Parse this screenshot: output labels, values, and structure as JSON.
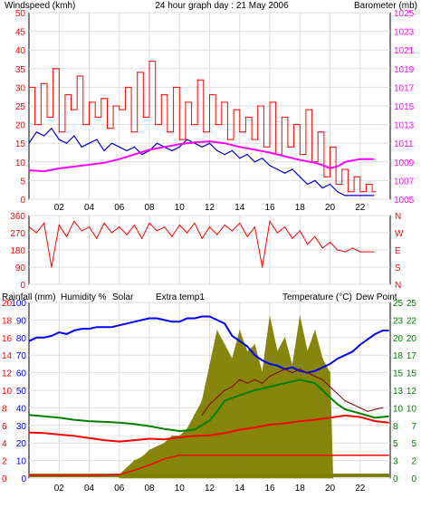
{
  "title": "24 hour graph day : 21 May 2006",
  "colors": {
    "wind": "#ff0000",
    "gust": "#cc0000",
    "avg_wind": "#0000cc",
    "baro": "#ff00ff",
    "dir": "#ff0000",
    "rain": "#ff0000",
    "humidity": "#0000ff",
    "solar": "#808000",
    "extra_temp": "#800000",
    "temperature": "#008000",
    "dew_point": "#ff0000",
    "frame": "#000000",
    "grid": "#ffffff"
  },
  "chart_data": [
    {
      "type": "line",
      "panel": "wind",
      "ylabel_left": "Windspeed (kmh)",
      "ylabel_right": "Barometer (mb)",
      "x_ticks": [
        "02",
        "04",
        "06",
        "08",
        "10",
        "12",
        "14",
        "16",
        "18",
        "20",
        "22"
      ],
      "y_ticks_left": [
        "0",
        "5",
        "10",
        "15",
        "20",
        "25",
        "30",
        "35",
        "40",
        "45",
        "50"
      ],
      "y_ticks_right": [
        "1005",
        "1007",
        "1009",
        "1011",
        "1013",
        "1015",
        "1017",
        "1019",
        "1021",
        "1023",
        "1025"
      ],
      "ylim_left": [
        0,
        50
      ],
      "ylim_right": [
        1005,
        1025
      ],
      "xlim": [
        0,
        24
      ],
      "series": [
        {
          "name": "Windspeed (kmh)",
          "axis": "left",
          "x": [
            0.0,
            0.4,
            0.8,
            1.2,
            1.6,
            2.0,
            2.4,
            2.8,
            3.2,
            3.6,
            4.0,
            4.4,
            4.8,
            5.2,
            5.6,
            6.0,
            6.4,
            6.8,
            7.2,
            7.6,
            8.0,
            8.4,
            8.8,
            9.2,
            9.6,
            10.0,
            10.4,
            10.8,
            11.2,
            11.6,
            12.0,
            12.4,
            12.8,
            13.2,
            13.6,
            14.0,
            14.4,
            14.8,
            15.2,
            15.6,
            16.0,
            16.4,
            16.8,
            17.2,
            17.6,
            18.0,
            18.4,
            18.8,
            19.2,
            19.6,
            20.0,
            20.4,
            20.8,
            21.2,
            21.6,
            22.0,
            22.4,
            22.8
          ],
          "values": [
            30,
            20,
            31,
            22,
            35,
            18,
            28,
            24,
            33,
            20,
            26,
            22,
            27,
            19,
            25,
            24,
            30,
            18,
            34,
            22,
            37,
            20,
            28,
            18,
            30,
            16,
            26,
            20,
            32,
            18,
            28,
            20,
            26,
            16,
            24,
            18,
            22,
            16,
            25,
            14,
            26,
            12,
            22,
            14,
            20,
            12,
            24,
            10,
            18,
            6,
            14,
            4,
            8,
            2,
            6,
            2,
            4,
            2
          ]
        },
        {
          "name": "Average wind",
          "axis": "left",
          "x": [
            0.0,
            0.5,
            1.0,
            1.5,
            2.0,
            2.5,
            3.0,
            3.5,
            4.0,
            4.5,
            5.0,
            5.5,
            6.0,
            6.5,
            7.0,
            7.5,
            8.0,
            8.5,
            9.0,
            9.5,
            10.0,
            10.5,
            11.0,
            11.5,
            12.0,
            12.5,
            13.0,
            13.5,
            14.0,
            14.5,
            15.0,
            15.5,
            16.0,
            16.5,
            17.0,
            17.5,
            18.0,
            18.5,
            19.0,
            19.5,
            20.0,
            20.5,
            21.0,
            21.5,
            22.0,
            22.5,
            22.9
          ],
          "values": [
            15,
            18,
            17,
            19,
            16,
            15,
            17,
            14,
            15,
            16,
            13,
            15,
            14,
            13,
            14,
            12,
            13,
            15,
            14,
            13,
            14,
            16,
            15,
            14,
            15,
            13,
            12,
            13,
            11,
            12,
            10,
            11,
            9,
            8,
            7,
            8,
            6,
            4,
            5,
            3,
            4,
            2,
            1,
            1,
            1,
            1,
            1
          ]
        },
        {
          "name": "Barometer (mb)",
          "axis": "right",
          "x": [
            0.0,
            1.0,
            2.0,
            3.0,
            4.0,
            5.0,
            6.0,
            7.0,
            8.0,
            9.0,
            10.0,
            11.0,
            12.0,
            13.0,
            14.0,
            15.0,
            16.0,
            17.0,
            18.0,
            19.0,
            19.6,
            20.0,
            20.6,
            21.0,
            22.0,
            22.9
          ],
          "values": [
            1008.1,
            1008.0,
            1008.3,
            1008.5,
            1008.7,
            1008.9,
            1009.3,
            1009.8,
            1010.3,
            1010.6,
            1010.9,
            1011.1,
            1011.2,
            1011.0,
            1010.6,
            1010.3,
            1010.0,
            1009.6,
            1009.2,
            1008.9,
            1008.6,
            1008.3,
            1008.6,
            1009.0,
            1009.3,
            1009.3
          ]
        }
      ]
    },
    {
      "type": "line",
      "panel": "wind_direction",
      "y_ticks_left": [
        "0",
        "90",
        "180",
        "270",
        "360"
      ],
      "y_ticks_right": [
        "N",
        "S",
        "E",
        "W",
        "N"
      ],
      "ylim": [
        0,
        360
      ],
      "xlim": [
        0,
        24
      ],
      "series": [
        {
          "name": "Wind direction",
          "x": [
            0.0,
            0.5,
            1.0,
            1.5,
            2.0,
            2.5,
            3.0,
            3.5,
            4.0,
            4.5,
            5.0,
            5.5,
            6.0,
            6.5,
            7.0,
            7.5,
            8.0,
            8.5,
            9.0,
            9.5,
            10.0,
            10.5,
            11.0,
            11.5,
            12.0,
            12.5,
            13.0,
            13.5,
            14.0,
            14.5,
            15.0,
            15.5,
            16.0,
            16.5,
            17.0,
            17.5,
            18.0,
            18.5,
            19.0,
            19.5,
            20.0,
            20.5,
            21.0,
            21.5,
            22.0,
            22.9
          ],
          "values": [
            300,
            270,
            320,
            90,
            310,
            250,
            330,
            280,
            300,
            240,
            320,
            270,
            300,
            260,
            310,
            240,
            320,
            280,
            300,
            250,
            310,
            270,
            320,
            240,
            300,
            260,
            310,
            280,
            320,
            250,
            300,
            90,
            330,
            270,
            300,
            240,
            280,
            210,
            250,
            190,
            220,
            180,
            170,
            190,
            170,
            170
          ]
        }
      ]
    },
    {
      "type": "line",
      "panel": "rain_humidity_solar_temperature",
      "labels": {
        "rainfall": "Rainfall (mm)",
        "humidity": "Humidity %",
        "solar": "Solar",
        "extra_temp": "Extra temp1",
        "temperature": "Temperature (°C)",
        "dew_point": "Dew Point"
      },
      "y_ticks_left_rain": [
        "0",
        "2",
        "4",
        "6",
        "8",
        "10",
        "12",
        "14",
        "16",
        "18",
        "20"
      ],
      "y_ticks_left_humidity": [
        "0",
        "10",
        "20",
        "30",
        "40",
        "50",
        "60",
        "70",
        "80",
        "90",
        "100"
      ],
      "y_ticks_right_temp_a": [
        "0",
        "3",
        "5",
        "8",
        "10",
        "13",
        "15",
        "18",
        "20",
        "23",
        "25"
      ],
      "y_ticks_right_temp_b": [
        "0",
        "2",
        "5",
        "7",
        "10",
        "12",
        "15",
        "17",
        "20",
        "22",
        "25"
      ],
      "ylim_left": [
        0,
        100
      ],
      "ylim_right": [
        0,
        25
      ],
      "xlim": [
        0,
        24
      ],
      "series": [
        {
          "name": "Humidity %",
          "axis": "left",
          "x": [
            0.0,
            0.5,
            1.0,
            1.5,
            2.0,
            2.5,
            3.0,
            3.5,
            4.0,
            4.5,
            5.0,
            5.5,
            6.0,
            6.5,
            7.0,
            7.5,
            8.0,
            8.5,
            9.0,
            9.5,
            10.0,
            10.5,
            11.0,
            11.5,
            12.0,
            12.5,
            13.0,
            13.5,
            14.0,
            14.5,
            15.0,
            15.5,
            16.0,
            16.5,
            17.0,
            17.5,
            18.0,
            18.5,
            19.0,
            19.5,
            20.0,
            20.5,
            21.0,
            21.5,
            22.0,
            22.5,
            23.0,
            23.5,
            23.9
          ],
          "values": [
            78,
            80,
            80,
            81,
            83,
            82,
            84,
            85,
            85,
            86,
            86,
            86,
            87,
            88,
            89,
            90,
            91,
            91,
            90,
            89,
            89,
            91,
            91,
            92,
            92,
            90,
            88,
            81,
            78,
            75,
            70,
            67,
            65,
            64,
            62,
            63,
            61,
            60,
            61,
            63,
            65,
            68,
            70,
            72,
            76,
            79,
            82,
            84,
            84
          ]
        },
        {
          "name": "Solar",
          "axis": "right",
          "type": "area",
          "x": [
            6.0,
            6.5,
            7.0,
            7.5,
            8.0,
            8.5,
            9.0,
            9.5,
            10.0,
            10.5,
            11.0,
            11.5,
            12.0,
            12.5,
            13.0,
            13.5,
            14.0,
            14.5,
            15.0,
            15.5,
            16.0,
            16.5,
            17.0,
            17.5,
            18.0,
            18.5,
            19.0,
            19.5,
            20.0,
            20.2
          ],
          "values": [
            0.5,
            1.5,
            2.5,
            3,
            4,
            4.5,
            5,
            6,
            6,
            7,
            9,
            11,
            16,
            21,
            19,
            17,
            21,
            18,
            19,
            15,
            23,
            18,
            20,
            16,
            23,
            18,
            21,
            17,
            15,
            0
          ]
        },
        {
          "name": "Temperature (°C)",
          "axis": "right",
          "x": [
            0.0,
            1.0,
            2.0,
            3.0,
            4.0,
            5.0,
            6.0,
            7.0,
            8.0,
            9.0,
            10.0,
            11.0,
            12.0,
            12.5,
            13.0,
            14.0,
            15.0,
            16.0,
            17.0,
            18.0,
            19.0,
            19.5,
            20.0,
            20.5,
            21.0,
            22.0,
            23.0,
            23.9
          ],
          "values": [
            9.0,
            8.8,
            8.6,
            8.3,
            8.1,
            8.0,
            7.9,
            7.7,
            7.4,
            7.0,
            6.7,
            6.9,
            8.2,
            9.5,
            11.0,
            11.8,
            12.5,
            13.0,
            13.5,
            14.0,
            13.5,
            12.5,
            11.5,
            10.5,
            9.8,
            9.2,
            8.6,
            8.8
          ]
        },
        {
          "name": "Extra temp1",
          "axis": "right",
          "x": [
            11.5,
            12.0,
            12.5,
            13.0,
            13.5,
            14.0,
            14.5,
            15.0,
            15.5,
            16.0,
            16.5,
            17.0,
            17.5,
            18.0,
            18.5,
            19.0,
            19.5,
            20.0,
            20.5,
            21.0,
            21.5,
            22.0,
            22.5,
            23.0,
            23.5
          ],
          "values": [
            9.0,
            10.5,
            11.5,
            12.5,
            13.0,
            14.0,
            13.5,
            14.0,
            13.5,
            14.5,
            15.0,
            15.5,
            15.0,
            15.5,
            15.0,
            14.5,
            14.0,
            13.0,
            12.0,
            11.0,
            10.5,
            10.0,
            9.5,
            9.8,
            10.0
          ]
        },
        {
          "name": "Dew Point",
          "axis": "right",
          "x": [
            0.0,
            1.0,
            2.0,
            3.0,
            4.0,
            5.0,
            6.0,
            7.0,
            8.0,
            9.0,
            10.0,
            11.0,
            12.0,
            13.0,
            14.0,
            15.0,
            16.0,
            17.0,
            18.0,
            19.0,
            20.0,
            21.0,
            22.0,
            23.0,
            23.9
          ],
          "values": [
            6.5,
            6.4,
            6.2,
            6.0,
            5.7,
            5.4,
            5.2,
            5.4,
            5.6,
            5.5,
            5.8,
            6.0,
            6.1,
            6.4,
            6.9,
            7.2,
            7.6,
            7.8,
            8.1,
            8.3,
            8.6,
            8.9,
            8.7,
            8.1,
            7.9
          ]
        },
        {
          "name": "Rainfall (mm)",
          "axis": "left_rain",
          "x": [
            0.0,
            2.0,
            4.0,
            6.0,
            7.0,
            8.0,
            9.0,
            10.0,
            11.0,
            12.0,
            14.0,
            16.0,
            18.0,
            20.0,
            22.0,
            23.9
          ],
          "values": [
            0.3,
            0.3,
            0.3,
            0.4,
            0.9,
            1.5,
            2.2,
            2.6,
            2.6,
            2.6,
            2.6,
            2.6,
            2.6,
            2.6,
            2.6,
            2.6
          ]
        }
      ]
    }
  ]
}
